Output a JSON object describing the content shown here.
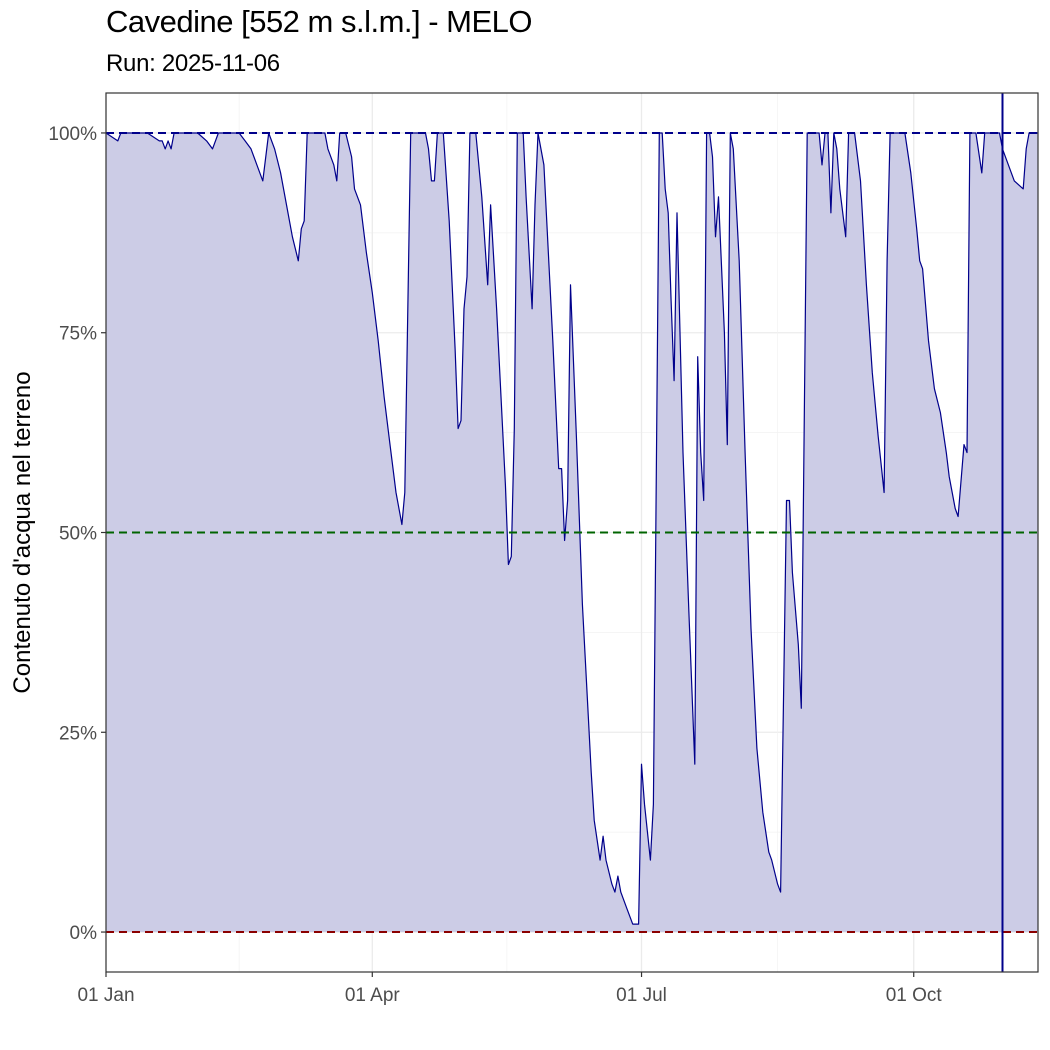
{
  "title": "Cavedine [552 m s.l.m.] - MELO",
  "subtitle": "Run: 2025-11-06",
  "chart_data": {
    "type": "area",
    "title": "Cavedine [552 m s.l.m.] - MELO",
    "subtitle": "Run: 2025-11-06",
    "xlabel": "",
    "ylabel": "Contenuto d'acqua nel terreno",
    "xlim": [
      "2025-01-01",
      "2025-11-12"
    ],
    "ylim": [
      -0.05,
      1.05
    ],
    "x_ticks": [
      {
        "date": "2025-01-01",
        "label": "01 Jan"
      },
      {
        "date": "2025-04-01",
        "label": "01 Apr"
      },
      {
        "date": "2025-07-01",
        "label": "01 Jul"
      },
      {
        "date": "2025-10-01",
        "label": "01 Oct"
      }
    ],
    "y_ticks": [
      {
        "value": 0,
        "label": "0%"
      },
      {
        "value": 0.25,
        "label": "25%"
      },
      {
        "value": 0.5,
        "label": "50%"
      },
      {
        "value": 0.75,
        "label": "75%"
      },
      {
        "value": 1.0,
        "label": "100%"
      }
    ],
    "grid": true,
    "reference_lines": [
      {
        "value": 1.0,
        "color": "#00008b",
        "style": "dashed"
      },
      {
        "value": 0.5,
        "color": "#006400",
        "style": "dashed"
      },
      {
        "value": 0.0,
        "color": "#8b0000",
        "style": "dashed"
      }
    ],
    "vertical_marker": {
      "date": "2025-10-31",
      "color": "#00008b"
    },
    "series": [
      {
        "line_color": "#00008b",
        "fill_color": "#cccce6",
        "points": [
          [
            "2025-01-01",
            1.0
          ],
          [
            "2025-01-05",
            0.99
          ],
          [
            "2025-01-06",
            1.0
          ],
          [
            "2025-01-15",
            1.0
          ],
          [
            "2025-01-19",
            0.99
          ],
          [
            "2025-01-20",
            0.99
          ],
          [
            "2025-01-21",
            0.98
          ],
          [
            "2025-01-22",
            0.99
          ],
          [
            "2025-01-23",
            0.98
          ],
          [
            "2025-01-24",
            1.0
          ],
          [
            "2025-02-01",
            1.0
          ],
          [
            "2025-02-04",
            0.99
          ],
          [
            "2025-02-06",
            0.98
          ],
          [
            "2025-02-08",
            1.0
          ],
          [
            "2025-02-15",
            1.0
          ],
          [
            "2025-02-17",
            0.99
          ],
          [
            "2025-02-19",
            0.98
          ],
          [
            "2025-02-21",
            0.96
          ],
          [
            "2025-02-23",
            0.94
          ],
          [
            "2025-02-25",
            1.0
          ],
          [
            "2025-02-27",
            0.98
          ],
          [
            "2025-03-01",
            0.95
          ],
          [
            "2025-03-03",
            0.91
          ],
          [
            "2025-03-05",
            0.87
          ],
          [
            "2025-03-07",
            0.84
          ],
          [
            "2025-03-08",
            0.88
          ],
          [
            "2025-03-09",
            0.89
          ],
          [
            "2025-03-10",
            1.0
          ],
          [
            "2025-03-16",
            1.0
          ],
          [
            "2025-03-17",
            0.98
          ],
          [
            "2025-03-19",
            0.96
          ],
          [
            "2025-03-20",
            0.94
          ],
          [
            "2025-03-21",
            1.0
          ],
          [
            "2025-03-23",
            1.0
          ],
          [
            "2025-03-25",
            0.97
          ],
          [
            "2025-03-26",
            0.93
          ],
          [
            "2025-03-28",
            0.91
          ],
          [
            "2025-03-30",
            0.85
          ],
          [
            "2025-04-01",
            0.8
          ],
          [
            "2025-04-03",
            0.74
          ],
          [
            "2025-04-05",
            0.67
          ],
          [
            "2025-04-07",
            0.61
          ],
          [
            "2025-04-09",
            0.55
          ],
          [
            "2025-04-11",
            0.51
          ],
          [
            "2025-04-12",
            0.55
          ],
          [
            "2025-04-14",
            1.0
          ],
          [
            "2025-04-19",
            1.0
          ],
          [
            "2025-04-20",
            0.98
          ],
          [
            "2025-04-21",
            0.94
          ],
          [
            "2025-04-22",
            0.94
          ],
          [
            "2025-04-23",
            1.0
          ],
          [
            "2025-04-25",
            1.0
          ],
          [
            "2025-04-27",
            0.89
          ],
          [
            "2025-04-29",
            0.73
          ],
          [
            "2025-04-30",
            0.63
          ],
          [
            "2025-05-01",
            0.64
          ],
          [
            "2025-05-02",
            0.78
          ],
          [
            "2025-05-03",
            0.82
          ],
          [
            "2025-05-04",
            1.0
          ],
          [
            "2025-05-06",
            1.0
          ],
          [
            "2025-05-08",
            0.92
          ],
          [
            "2025-05-10",
            0.81
          ],
          [
            "2025-05-11",
            0.91
          ],
          [
            "2025-05-13",
            0.78
          ],
          [
            "2025-05-16",
            0.56
          ],
          [
            "2025-05-17",
            0.46
          ],
          [
            "2025-05-18",
            0.47
          ],
          [
            "2025-05-19",
            0.63
          ],
          [
            "2025-05-20",
            1.0
          ],
          [
            "2025-05-22",
            1.0
          ],
          [
            "2025-05-23",
            0.92
          ],
          [
            "2025-05-25",
            0.78
          ],
          [
            "2025-05-26",
            0.91
          ],
          [
            "2025-05-27",
            1.0
          ],
          [
            "2025-05-29",
            0.96
          ],
          [
            "2025-06-01",
            0.74
          ],
          [
            "2025-06-03",
            0.58
          ],
          [
            "2025-06-04",
            0.58
          ],
          [
            "2025-06-05",
            0.49
          ],
          [
            "2025-06-06",
            0.54
          ],
          [
            "2025-06-07",
            0.81
          ],
          [
            "2025-06-09",
            0.62
          ],
          [
            "2025-06-11",
            0.41
          ],
          [
            "2025-06-13",
            0.27
          ],
          [
            "2025-06-14",
            0.2
          ],
          [
            "2025-06-15",
            0.14
          ],
          [
            "2025-06-17",
            0.09
          ],
          [
            "2025-06-18",
            0.12
          ],
          [
            "2025-06-19",
            0.09
          ],
          [
            "2025-06-21",
            0.06
          ],
          [
            "2025-06-22",
            0.05
          ],
          [
            "2025-06-23",
            0.07
          ],
          [
            "2025-06-24",
            0.05
          ],
          [
            "2025-06-26",
            0.03
          ],
          [
            "2025-06-28",
            0.01
          ],
          [
            "2025-06-30",
            0.01
          ],
          [
            "2025-07-01",
            0.21
          ],
          [
            "2025-07-02",
            0.16
          ],
          [
            "2025-07-04",
            0.09
          ],
          [
            "2025-07-05",
            0.16
          ],
          [
            "2025-07-07",
            1.0
          ],
          [
            "2025-07-08",
            1.0
          ],
          [
            "2025-07-09",
            0.93
          ],
          [
            "2025-07-10",
            0.9
          ],
          [
            "2025-07-11",
            0.79
          ],
          [
            "2025-07-12",
            0.69
          ],
          [
            "2025-07-13",
            0.9
          ],
          [
            "2025-07-15",
            0.6
          ],
          [
            "2025-07-17",
            0.4
          ],
          [
            "2025-07-19",
            0.21
          ],
          [
            "2025-07-20",
            0.72
          ],
          [
            "2025-07-21",
            0.6
          ],
          [
            "2025-07-22",
            0.54
          ],
          [
            "2025-07-23",
            1.0
          ],
          [
            "2025-07-24",
            1.0
          ],
          [
            "2025-07-25",
            0.97
          ],
          [
            "2025-07-26",
            0.87
          ],
          [
            "2025-07-27",
            0.92
          ],
          [
            "2025-07-29",
            0.75
          ],
          [
            "2025-07-30",
            0.61
          ],
          [
            "2025-07-31",
            1.0
          ],
          [
            "2025-08-01",
            0.98
          ],
          [
            "2025-08-03",
            0.84
          ],
          [
            "2025-08-05",
            0.6
          ],
          [
            "2025-08-07",
            0.38
          ],
          [
            "2025-08-09",
            0.23
          ],
          [
            "2025-08-11",
            0.15
          ],
          [
            "2025-08-13",
            0.1
          ],
          [
            "2025-08-14",
            0.09
          ],
          [
            "2025-08-16",
            0.06
          ],
          [
            "2025-08-17",
            0.05
          ],
          [
            "2025-08-19",
            0.54
          ],
          [
            "2025-08-20",
            0.54
          ],
          [
            "2025-08-21",
            0.45
          ],
          [
            "2025-08-23",
            0.36
          ],
          [
            "2025-08-24",
            0.28
          ],
          [
            "2025-08-26",
            1.0
          ],
          [
            "2025-08-30",
            1.0
          ],
          [
            "2025-08-31",
            0.96
          ],
          [
            "2025-09-01",
            1.0
          ],
          [
            "2025-09-02",
            1.0
          ],
          [
            "2025-09-03",
            0.9
          ],
          [
            "2025-09-04",
            1.0
          ],
          [
            "2025-09-05",
            0.98
          ],
          [
            "2025-09-06",
            0.93
          ],
          [
            "2025-09-08",
            0.87
          ],
          [
            "2025-09-09",
            1.0
          ],
          [
            "2025-09-11",
            1.0
          ],
          [
            "2025-09-13",
            0.94
          ],
          [
            "2025-09-15",
            0.81
          ],
          [
            "2025-09-17",
            0.7
          ],
          [
            "2025-09-19",
            0.62
          ],
          [
            "2025-09-21",
            0.55
          ],
          [
            "2025-09-22",
            0.84
          ],
          [
            "2025-09-23",
            1.0
          ],
          [
            "2025-09-28",
            1.0
          ],
          [
            "2025-09-30",
            0.95
          ],
          [
            "2025-10-02",
            0.88
          ],
          [
            "2025-10-03",
            0.84
          ],
          [
            "2025-10-04",
            0.83
          ],
          [
            "2025-10-06",
            0.74
          ],
          [
            "2025-10-08",
            0.68
          ],
          [
            "2025-10-10",
            0.65
          ],
          [
            "2025-10-12",
            0.6
          ],
          [
            "2025-10-13",
            0.57
          ],
          [
            "2025-10-15",
            0.53
          ],
          [
            "2025-10-16",
            0.52
          ],
          [
            "2025-10-18",
            0.61
          ],
          [
            "2025-10-19",
            0.6
          ],
          [
            "2025-10-20",
            1.0
          ],
          [
            "2025-10-22",
            1.0
          ],
          [
            "2025-10-24",
            0.95
          ],
          [
            "2025-10-25",
            1.0
          ],
          [
            "2025-10-30",
            1.0
          ],
          [
            "2025-10-31",
            0.98
          ],
          [
            "2025-11-02",
            0.96
          ],
          [
            "2025-11-04",
            0.94
          ],
          [
            "2025-11-07",
            0.93
          ],
          [
            "2025-11-08",
            0.98
          ],
          [
            "2025-11-09",
            1.0
          ],
          [
            "2025-11-12",
            1.0
          ]
        ]
      }
    ]
  }
}
